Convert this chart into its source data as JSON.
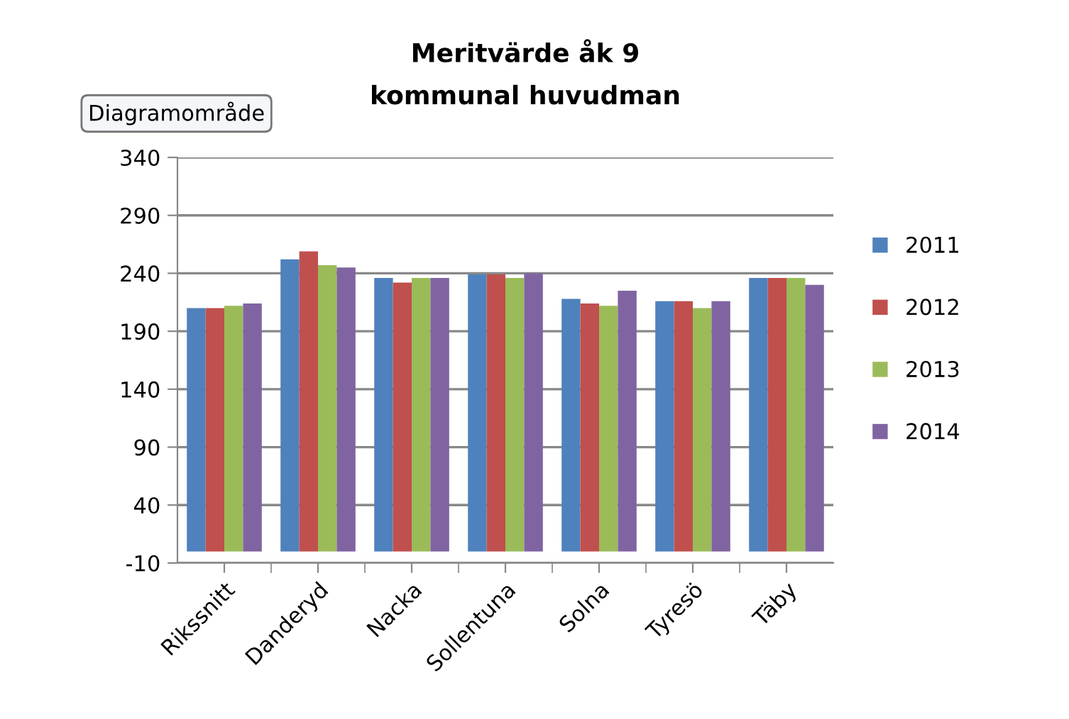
{
  "chart_data": {
    "type": "bar",
    "title": "Meritvärde åk 9\nkommunal huvudman",
    "categories": [
      "Rikssnitt",
      "Danderyd",
      "Nacka",
      "Sollentuna",
      "Solna",
      "Tyresö",
      "Täby"
    ],
    "series": [
      {
        "name": "2011",
        "color": "#4f81bd",
        "values": [
          210,
          252,
          236,
          239,
          218,
          216,
          236
        ]
      },
      {
        "name": "2012",
        "color": "#c0504d",
        "values": [
          210,
          259,
          232,
          239,
          214,
          216,
          236
        ]
      },
      {
        "name": "2013",
        "color": "#9bbb59",
        "values": [
          212,
          247,
          236,
          236,
          212,
          210,
          236
        ]
      },
      {
        "name": "2014",
        "color": "#8064a2",
        "values": [
          214,
          245,
          236,
          240,
          225,
          216,
          230
        ]
      }
    ],
    "ylim": [
      -10,
      340
    ],
    "yticks": [
      -10,
      40,
      90,
      140,
      190,
      240,
      290,
      340
    ],
    "grid": "y",
    "legend": "right",
    "annotations": [
      "Diagramområde"
    ]
  }
}
